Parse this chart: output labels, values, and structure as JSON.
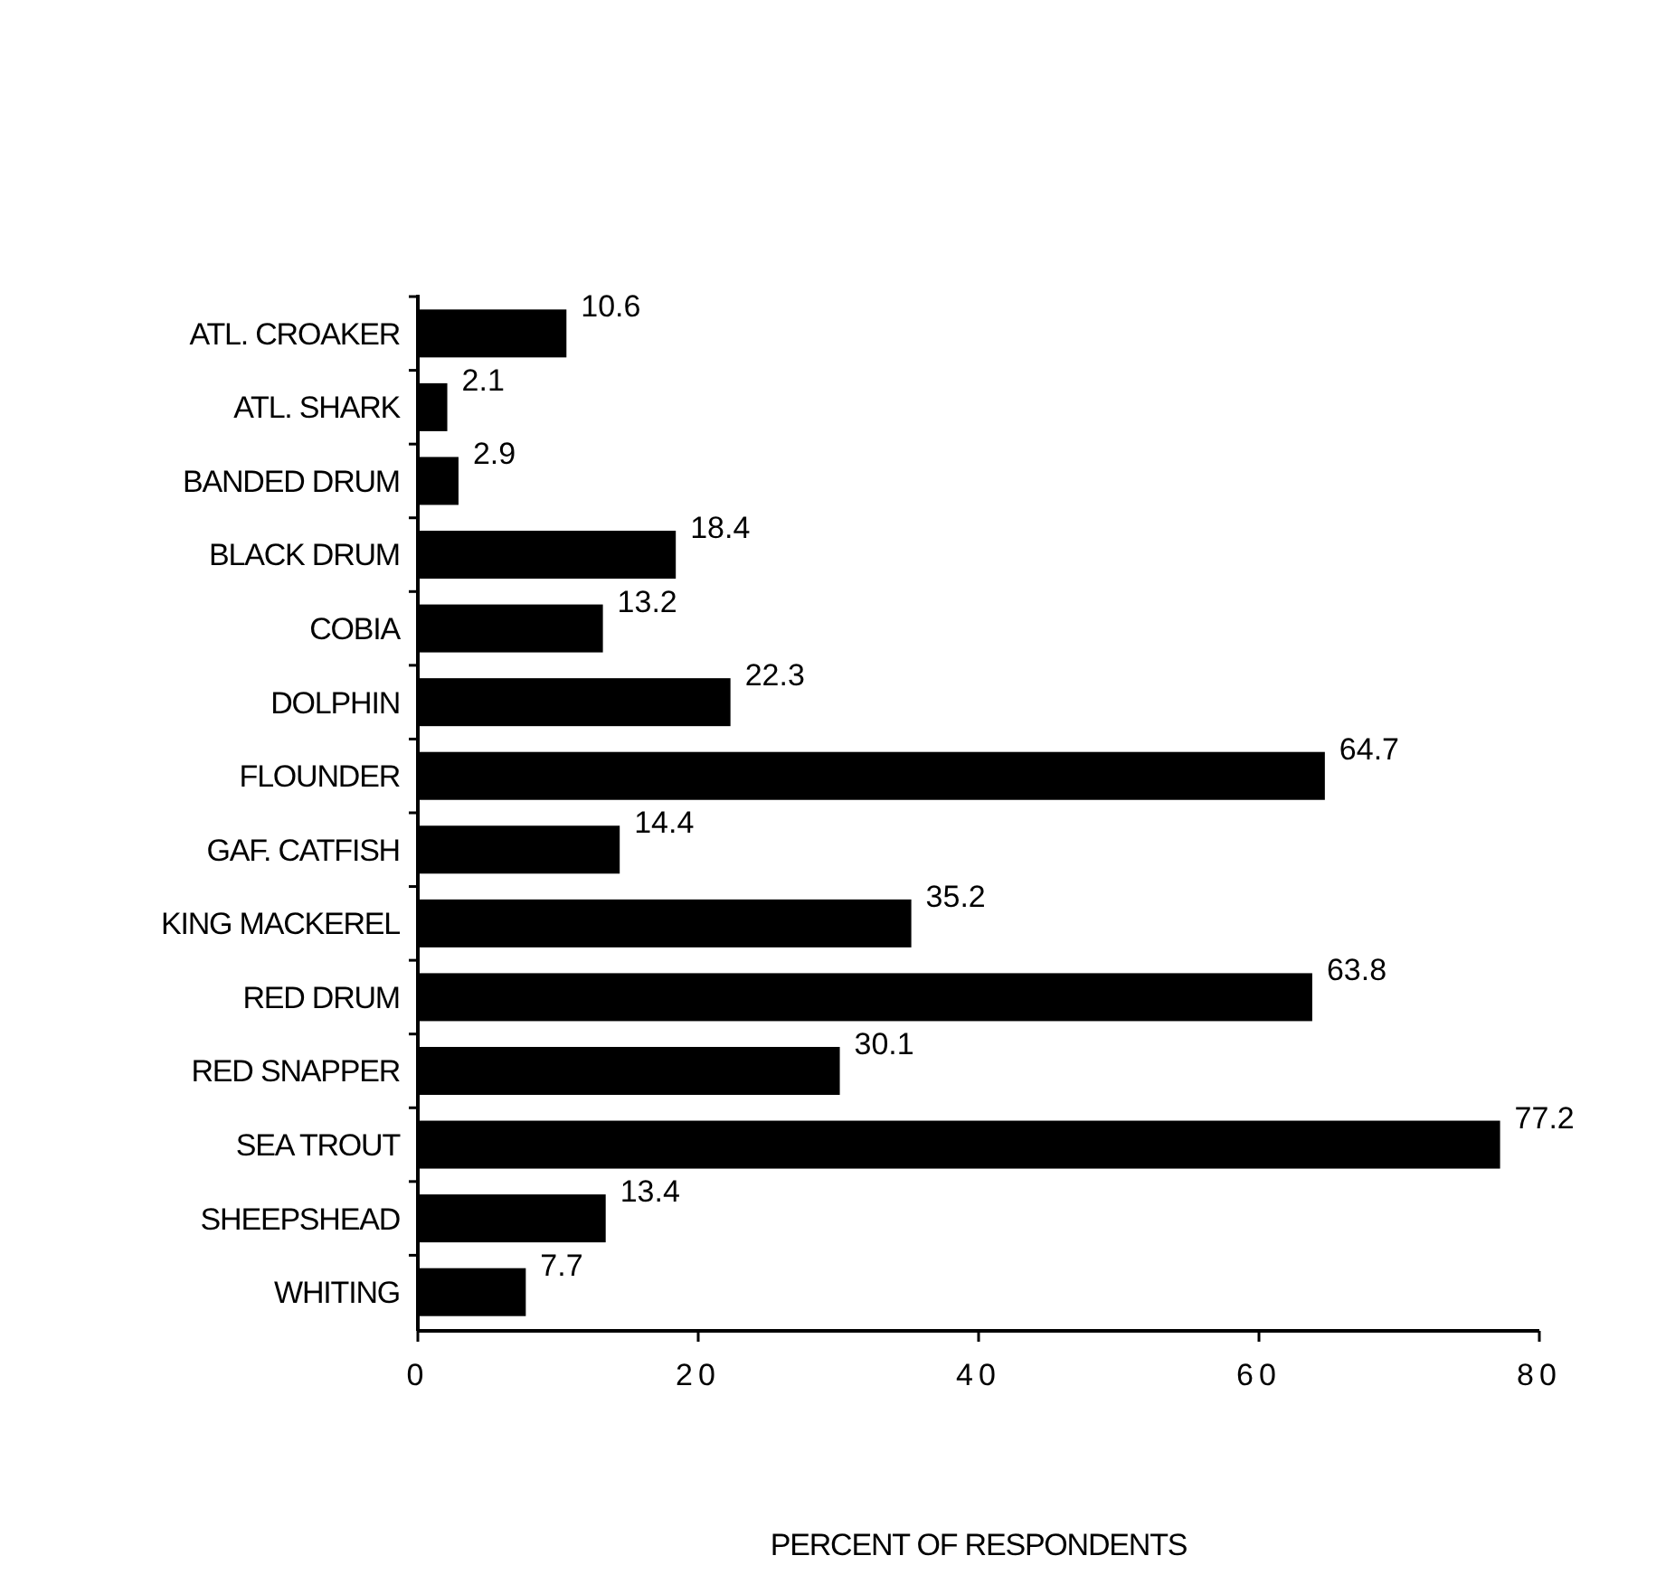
{
  "chart_data": {
    "type": "bar",
    "orientation": "horizontal",
    "xlabel": "PERCENT OF RESPONDENTS",
    "categories": [
      "ATL. CROAKER",
      "ATL. SHARK",
      "BANDED DRUM",
      "BLACK DRUM",
      "COBIA",
      "DOLPHIN",
      "FLOUNDER",
      "GAF. CATFISH",
      "KING MACKEREL",
      "RED DRUM",
      "RED SNAPPER",
      "SEA TROUT",
      "SHEEPSHEAD",
      "WHITING"
    ],
    "values": [
      10.6,
      2.1,
      2.9,
      18.4,
      13.2,
      22.3,
      64.7,
      14.4,
      35.2,
      63.8,
      30.1,
      77.2,
      13.4,
      7.7
    ],
    "color": "#000000",
    "xlim": [
      0,
      80
    ],
    "xticks": [
      0,
      20,
      40,
      60,
      80
    ],
    "data_labels": true,
    "grid": false
  }
}
